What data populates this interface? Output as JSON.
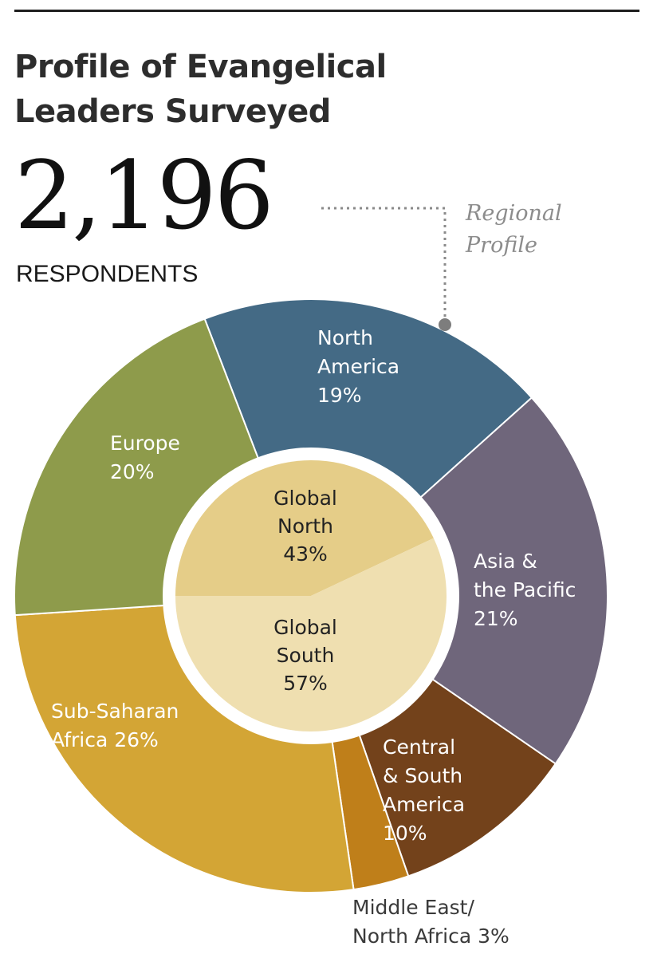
{
  "title_lines": [
    "Profile of Evangelical",
    "Leaders Surveyed"
  ],
  "respondents": {
    "count": "2,196",
    "label": "RESPONDENTS"
  },
  "annotation_lines": [
    "Regional",
    "Profile"
  ],
  "chart_data": [
    {
      "type": "pie",
      "variant": "donut",
      "title": "Regional Profile",
      "slices": [
        {
          "label_lines": [
            "North",
            "America",
            "19%"
          ],
          "value": 19,
          "color": "#446a85"
        },
        {
          "label_lines": [
            "Asia &",
            "the Pacific",
            "21%"
          ],
          "value": 21,
          "color": "#6f667b"
        },
        {
          "label_lines": [
            "Central",
            "& South",
            "America",
            "10%"
          ],
          "value": 10,
          "color": "#73421b"
        },
        {
          "label_lines": [
            "Middle East/",
            "North Africa 3%"
          ],
          "value": 3,
          "color": "#bf7f1a"
        },
        {
          "label_lines": [
            "Sub-Saharan",
            "Africa 26%"
          ],
          "value": 26,
          "color": "#d3a535"
        },
        {
          "label_lines": [
            "Europe",
            "20%"
          ],
          "value": 20,
          "color": "#8e9b4b"
        }
      ]
    },
    {
      "type": "pie",
      "slices": [
        {
          "label_lines": [
            "Global",
            "North",
            "43%"
          ],
          "value": 43,
          "color": "#e5cd88"
        },
        {
          "label_lines": [
            "Global",
            "South",
            "57%"
          ],
          "value": 57,
          "color": "#efdfb0"
        }
      ]
    }
  ]
}
